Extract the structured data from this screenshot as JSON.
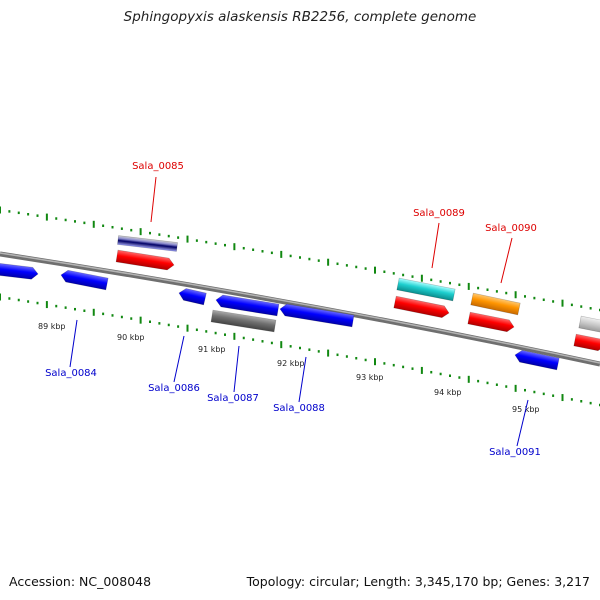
{
  "title": "Sphingopyxis alaskensis RB2256, complete genome",
  "footer": {
    "accession": "Accession: NC_008048",
    "summary": "Topology: circular; Length: 3,345,170 bp; Genes: 3,217"
  },
  "colors": {
    "top_label": "#dd0000",
    "bottom_label": "#0000cc",
    "tick": "#118811",
    "backbone": "#888888",
    "forward_gene": "#ff0000",
    "reverse_gene": "#0000ff"
  },
  "kbp_labels": [
    "89 kbp",
    "90 kbp",
    "91 kbp",
    "92 kbp",
    "93 kbp",
    "94 kbp",
    "95 kbp"
  ],
  "gene_labels": {
    "top": [
      "Sala_0085",
      "Sala_0089",
      "Sala_0090"
    ],
    "bottom": [
      "Sala_0084",
      "Sala_0086",
      "Sala_0087",
      "Sala_0088",
      "Sala_0091"
    ]
  }
}
